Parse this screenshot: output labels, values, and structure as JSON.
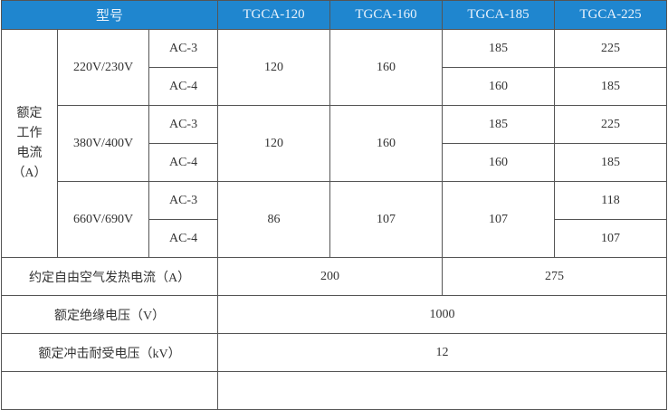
{
  "header": {
    "model_label": "型号",
    "models": [
      "TGCA-120",
      "TGCA-160",
      "TGCA-185",
      "TGCA-225"
    ]
  },
  "rated_current": {
    "label_lines": [
      "额定",
      "工作",
      "电流",
      "（A）"
    ],
    "groups": [
      {
        "voltage": "220V/230V",
        "cat1": "AC-3",
        "cat2": "AC-4",
        "tgca120": "120",
        "tgca160": "160",
        "tgca185": [
          "185",
          "160"
        ],
        "tgca225": [
          "225",
          "185"
        ]
      },
      {
        "voltage": "380V/400V",
        "cat1": "AC-3",
        "cat2": "AC-4",
        "tgca120": "120",
        "tgca160": "160",
        "tgca185": [
          "185",
          "160"
        ],
        "tgca225": [
          "225",
          "185"
        ]
      },
      {
        "voltage": "660V/690V",
        "cat1": "AC-3",
        "cat2": "AC-4",
        "tgca120": "86",
        "tgca160": "107",
        "tgca185": "107",
        "tgca225": [
          "118",
          "107"
        ]
      }
    ]
  },
  "thermal_current": {
    "label": "约定自由空气发热电流（A）",
    "value_small": "200",
    "value_large": "275"
  },
  "insulation_voltage": {
    "label": "额定绝缘电压（V）",
    "value": "1000"
  },
  "impulse_voltage": {
    "label": "额定冲击耐受电压（kV）",
    "value": "12"
  }
}
